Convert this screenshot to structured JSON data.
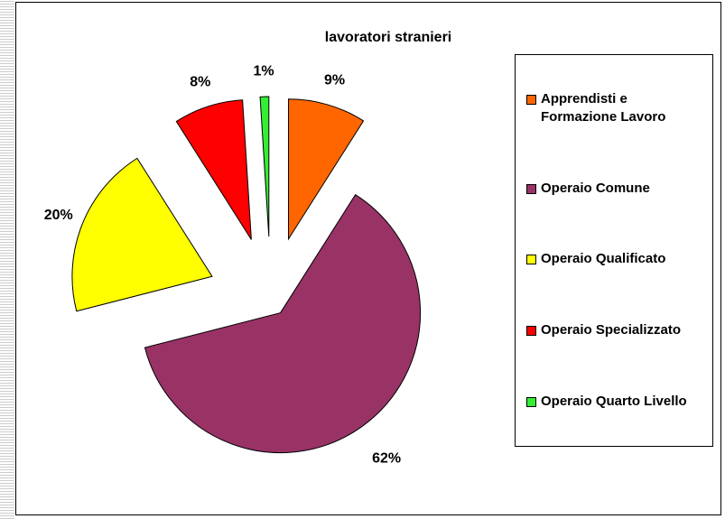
{
  "chart_data": {
    "type": "pie",
    "title": "lavoratori stranieri",
    "categories": [
      "Apprendisti e Formazione Lavoro",
      "Operaio Comune",
      "Operaio Qualificato",
      "Operaio Specializzato",
      "Operaio Quarto Livello"
    ],
    "values": [
      9,
      62,
      20,
      8,
      1
    ],
    "value_labels": [
      "9%",
      "62%",
      "20%",
      "8%",
      "1%"
    ],
    "colors": [
      "#ff6600",
      "#993366",
      "#ffff00",
      "#ff0000",
      "#33ee33"
    ],
    "legend": "right"
  }
}
